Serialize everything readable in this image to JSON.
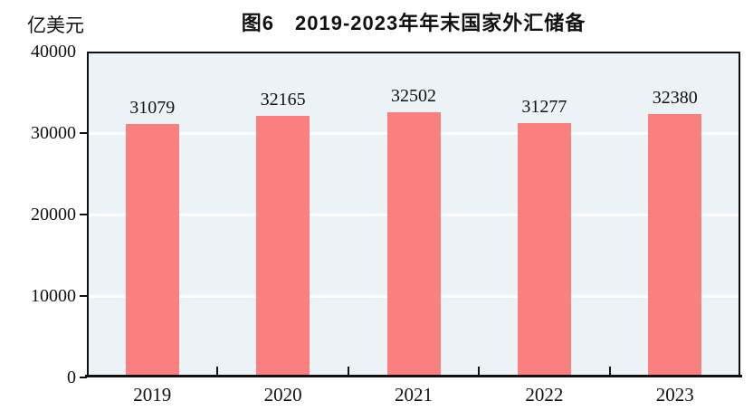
{
  "chart_data": {
    "type": "bar",
    "title": "图6　2019-2023年年末国家外汇储备",
    "unit_label": "亿美元",
    "categories": [
      "2019",
      "2020",
      "2021",
      "2022",
      "2023"
    ],
    "values": [
      31079,
      32165,
      32502,
      31277,
      32380
    ],
    "ylim": [
      0,
      40000
    ],
    "yticks": [
      0,
      10000,
      20000,
      30000,
      40000
    ],
    "xlabel": "",
    "ylabel": "亿美元",
    "grid": true,
    "legend_position": "none",
    "colors": {
      "bar": "#FA8080",
      "plot_background": "#EBF3F6",
      "gridline": "#FFFFFF",
      "axis": "#111111",
      "text": "#111111"
    }
  }
}
